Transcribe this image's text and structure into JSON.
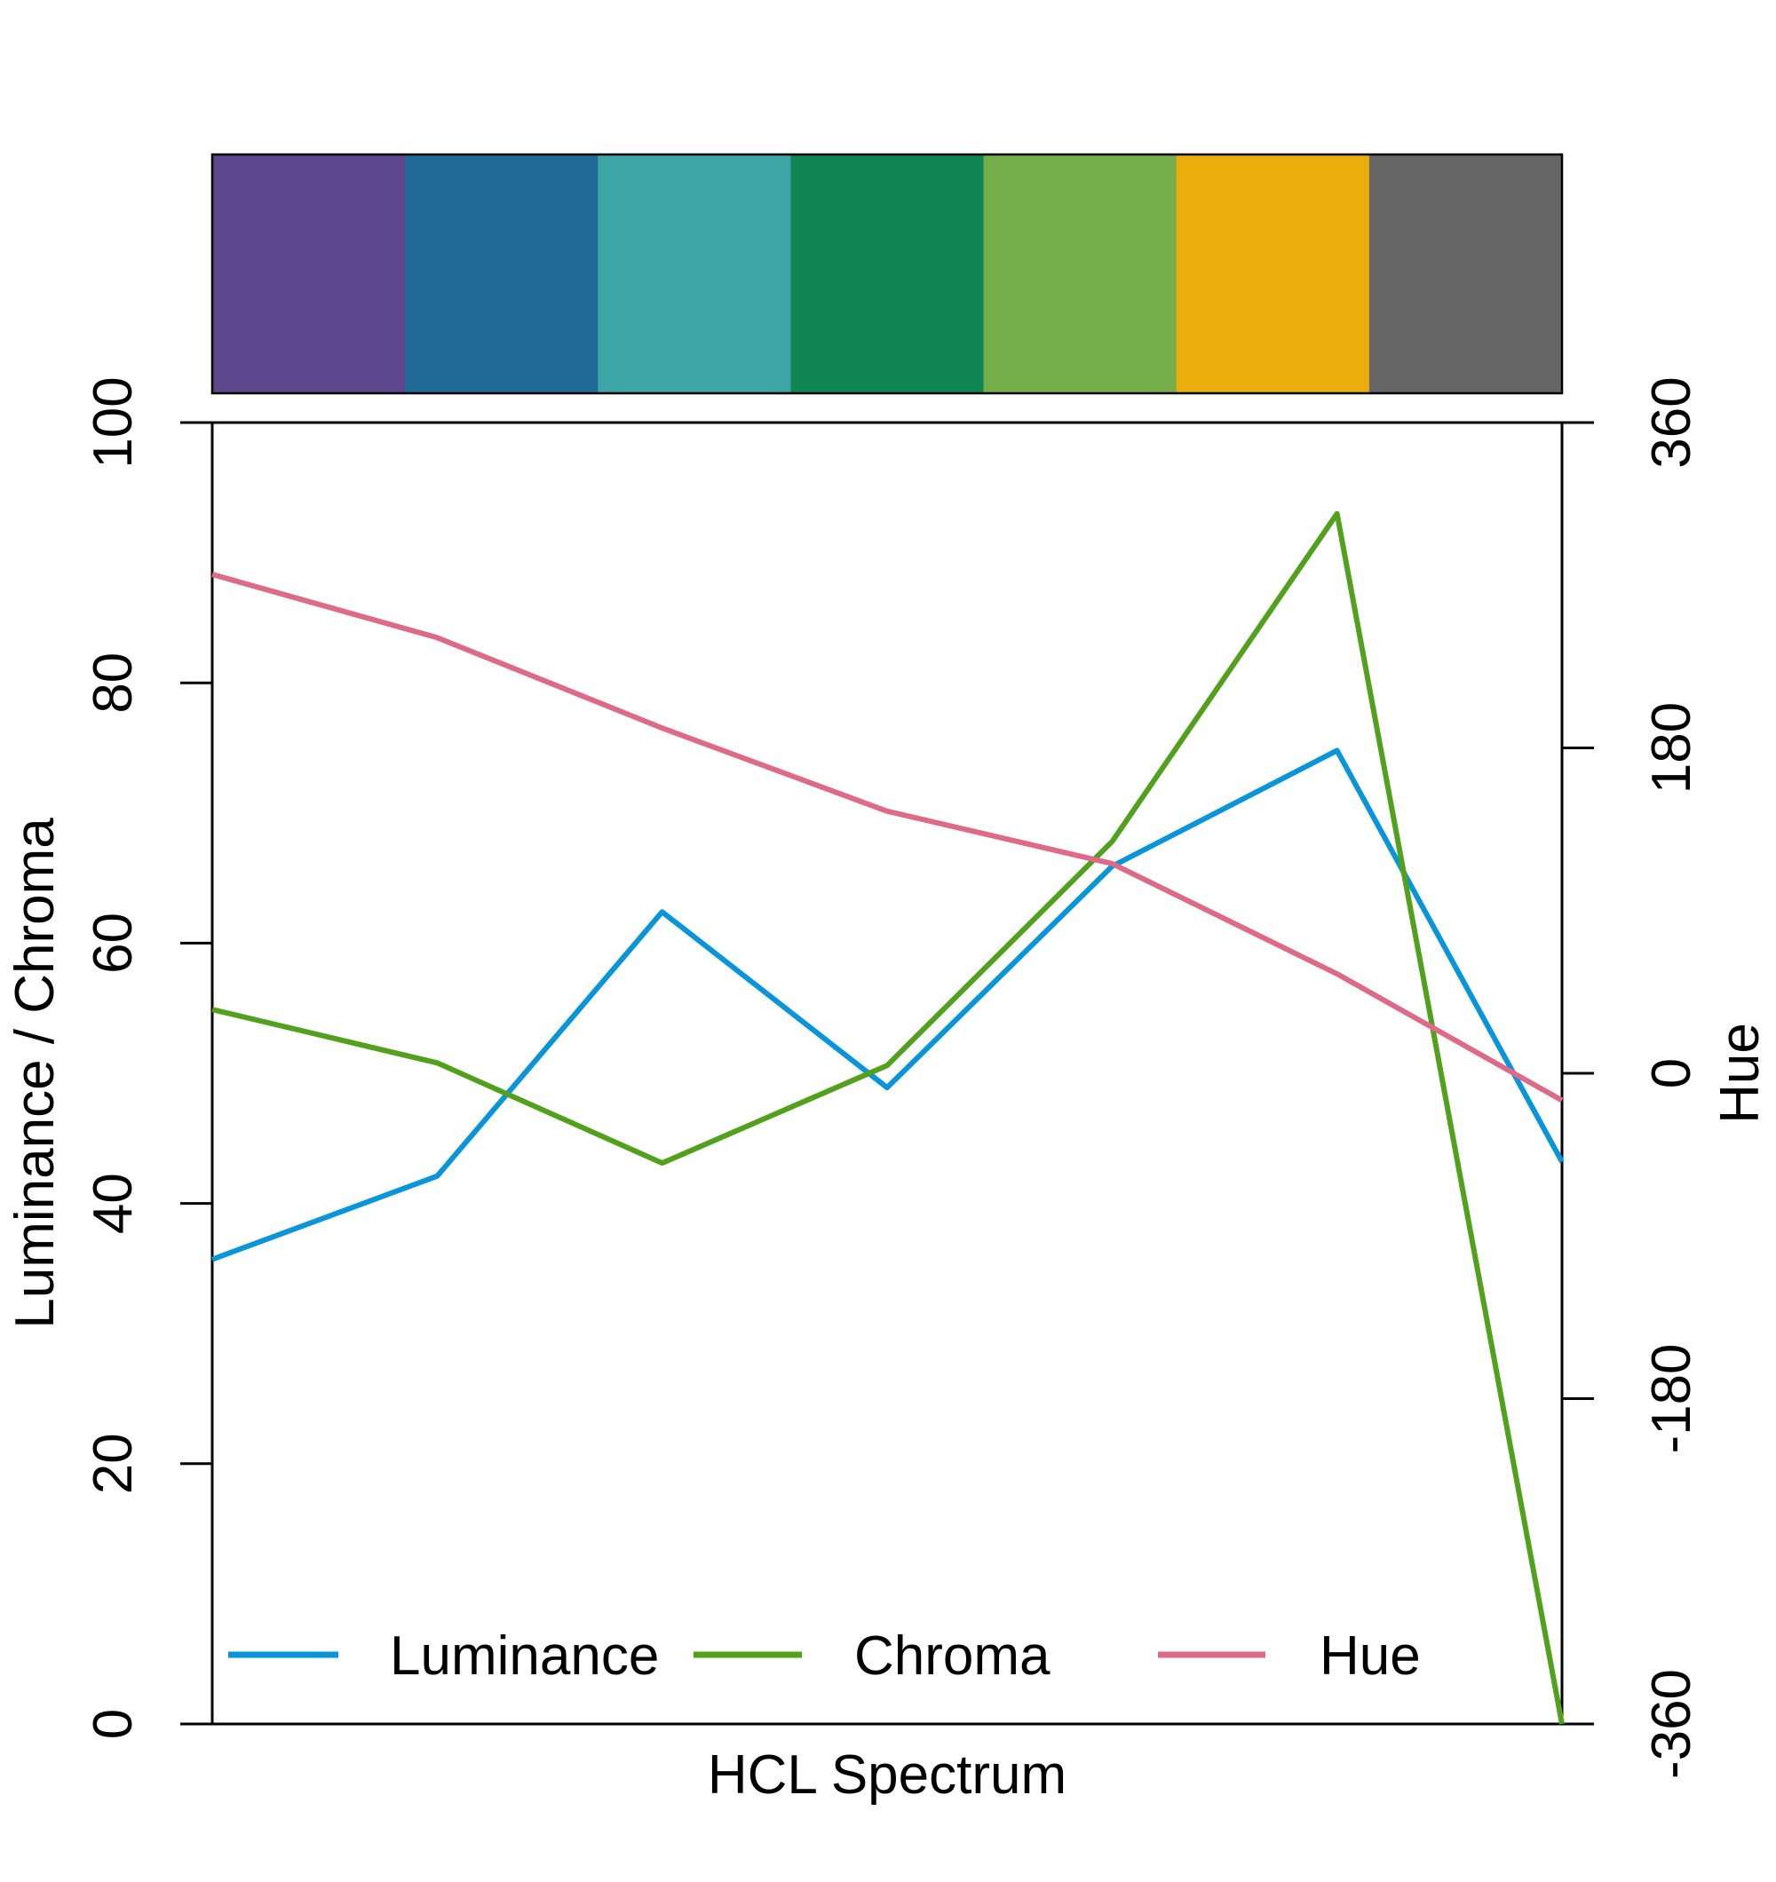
{
  "chart_data": {
    "type": "line",
    "xlabel": "HCL Spectrum",
    "ylabel": "Luminance / Chroma",
    "ylabel_right": "Hue",
    "ylim": [
      0,
      100
    ],
    "ylim_right": [
      -360,
      360
    ],
    "yticks": [
      "0",
      "20",
      "40",
      "60",
      "80",
      "100"
    ],
    "yticks_right": [
      "-360",
      "-180",
      "0",
      "180",
      "360"
    ],
    "x": [
      1,
      2,
      3,
      4,
      5,
      6,
      7
    ],
    "swatches": [
      "#5D468B",
      "#1F6A96",
      "#3BA6A5",
      "#118654",
      "#74AF4B",
      "#EAAD0C",
      "#666666"
    ],
    "series": [
      {
        "name": "Luminance",
        "axis": "left",
        "color": "#0895DA",
        "values": [
          35.7,
          42.1,
          62.4,
          48.9,
          65.9,
          74.8,
          43.2
        ]
      },
      {
        "name": "Chroma",
        "axis": "left",
        "color": "#52A11C",
        "values": [
          54.9,
          50.8,
          43.1,
          50.6,
          67.8,
          93.0,
          0
        ]
      },
      {
        "name": "Hue",
        "axis": "right",
        "color": "#DF6A88",
        "values": [
          276,
          241,
          191,
          145,
          116,
          55,
          -15
        ]
      }
    ],
    "legend_placement": "bottom",
    "grid": false
  }
}
